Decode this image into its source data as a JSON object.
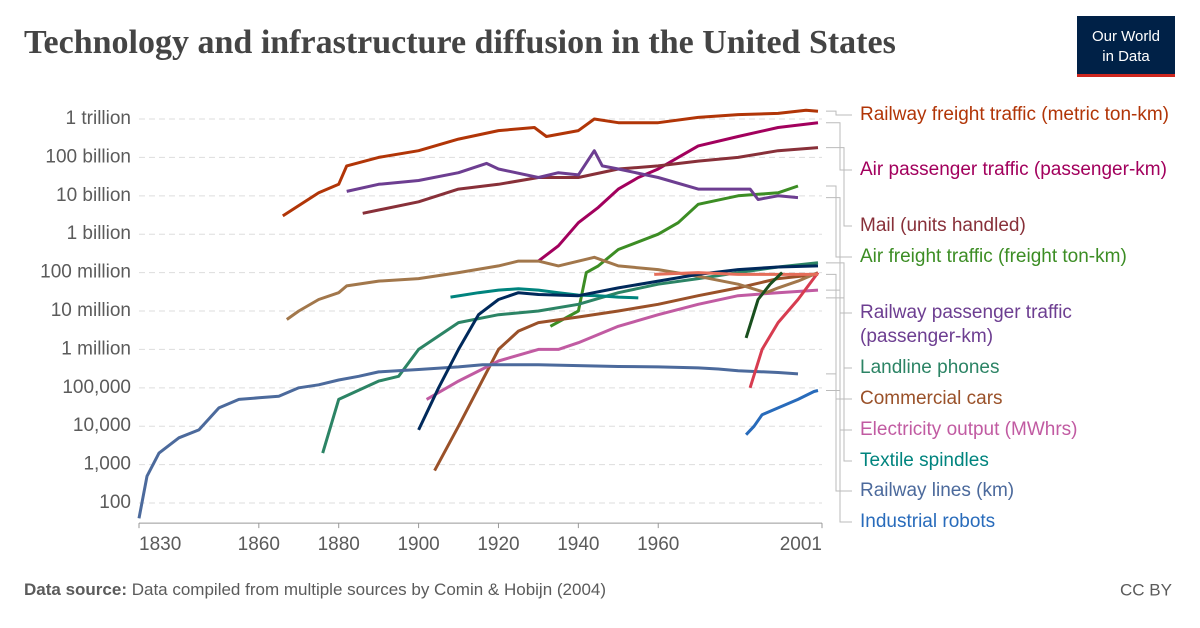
{
  "chart_data": {
    "type": "line",
    "title": "Technology and infrastructure diffusion in the United States",
    "logo": [
      "Our World",
      "in Data"
    ],
    "source_label": "Data source:",
    "source": "Data compiled from multiple sources by Comin & Hobijn (2004)",
    "license": "CC BY",
    "log_scale": true,
    "grid": true,
    "xlim": [
      1830,
      2001
    ],
    "xticks": [
      1830,
      1860,
      1880,
      1900,
      1920,
      1940,
      1960,
      2001
    ],
    "ylim": [
      30,
      3000000000000
    ],
    "yticks": [
      100,
      {
        "value": 1000,
        "label": "1,000"
      },
      {
        "value": 10000,
        "label": "10,000"
      },
      {
        "value": 100000,
        "label": "100,000"
      },
      {
        "value": 1000000,
        "label": "1 million"
      },
      {
        "value": 10000000,
        "label": "10 million"
      },
      {
        "value": 100000000,
        "label": "100 million"
      },
      {
        "value": 1000000000,
        "label": "1 billion"
      },
      {
        "value": 10000000000,
        "label": "10 billion"
      },
      {
        "value": 100000000000,
        "label": "100 billion"
      },
      {
        "value": 1000000000000,
        "label": "1 trillion"
      }
    ],
    "series": [
      {
        "name": "Railway freight traffic (metric ton-km)",
        "color": "#b13507",
        "x": [
          1866,
          1875,
          1880,
          1882,
          1890,
          1900,
          1910,
          1920,
          1929,
          1932,
          1940,
          1944,
          1950,
          1960,
          1970,
          1980,
          1990,
          1997,
          2000
        ],
        "values": [
          3000000000.0,
          12000000000.0,
          20000000000.0,
          60000000000.0,
          100000000000.0,
          150000000000.0,
          300000000000.0,
          500000000000.0,
          600000000000.0,
          350000000000.0,
          500000000000.0,
          1000000000000.0,
          800000000000.0,
          800000000000.0,
          1100000000000.0,
          1300000000000.0,
          1400000000000.0,
          1700000000000.0,
          1600000000000.0
        ]
      },
      {
        "name": "Air passenger traffic (passenger-km)",
        "color": "#a2005d",
        "x": [
          1930,
          1935,
          1940,
          1945,
          1950,
          1955,
          1960,
          1965,
          1970,
          1980,
          1990,
          2000
        ],
        "values": [
          200000000.0,
          500000000.0,
          2000000000.0,
          5000000000.0,
          15000000000.0,
          30000000000.0,
          50000000000.0,
          100000000000.0,
          200000000000.0,
          350000000000.0,
          600000000000.0,
          800000000000.0
        ]
      },
      {
        "name": "Mail (units handled)",
        "color": "#883039",
        "x": [
          1886,
          1900,
          1910,
          1920,
          1930,
          1940,
          1950,
          1960,
          1970,
          1980,
          1990,
          2000
        ],
        "values": [
          3500000000.0,
          7000000000.0,
          15000000000.0,
          20000000000.0,
          30000000000.0,
          30000000000.0,
          50000000000.0,
          60000000000.0,
          80000000000.0,
          100000000000.0,
          150000000000.0,
          180000000000.0
        ]
      },
      {
        "name": "Air freight traffic (freight ton-km)",
        "color": "#3c8d24",
        "x": [
          1933,
          1940,
          1942,
          1945,
          1950,
          1960,
          1965,
          1970,
          1980,
          1990,
          1995
        ],
        "values": [
          4000000.0,
          10000000.0,
          100000000.0,
          150000000.0,
          400000000.0,
          1000000000.0,
          2000000000.0,
          6000000000.0,
          10000000000.0,
          12000000000.0,
          18000000000.0
        ]
      },
      {
        "name": "Railway passenger traffic (passenger-km)",
        "color": "#6d3e91",
        "x": [
          1882,
          1890,
          1900,
          1910,
          1917,
          1920,
          1930,
          1935,
          1940,
          1944,
          1946,
          1950,
          1960,
          1970,
          1980,
          1983,
          1985,
          1990,
          1995
        ],
        "values": [
          13000000000.0,
          20000000000.0,
          25000000000.0,
          40000000000.0,
          70000000000.0,
          50000000000.0,
          30000000000.0,
          40000000000.0,
          35000000000.0,
          150000000000.0,
          60000000000.0,
          50000000000.0,
          30000000000.0,
          15000000000.0,
          15000000000.0,
          15000000000.0,
          8000000000.0,
          10000000000.0,
          9000000000.0
        ]
      },
      {
        "name": "Landline phones",
        "color": "#2c8465",
        "x": [
          1876,
          1880,
          1890,
          1895,
          1900,
          1910,
          1920,
          1930,
          1940,
          1950,
          1960,
          1970,
          1980,
          1990,
          2000
        ],
        "values": [
          2000.0,
          50000.0,
          150000.0,
          200000.0,
          1000000.0,
          5000000.0,
          8000000.0,
          10000000.0,
          15000000.0,
          30000000.0,
          50000000.0,
          70000000.0,
          100000000.0,
          140000000.0,
          180000000.0
        ]
      },
      {
        "name": "Commercial cars",
        "color": "#9a5129",
        "x": [
          1904,
          1910,
          1915,
          1920,
          1925,
          1930,
          1940,
          1950,
          1960,
          1970,
          1980,
          1990,
          2000
        ],
        "values": [
          700,
          10000.0,
          100000.0,
          1000000.0,
          3000000.0,
          5000000.0,
          7000000.0,
          10000000.0,
          15000000.0,
          25000000.0,
          40000000.0,
          70000000.0,
          90000000.0
        ]
      },
      {
        "name": "Electricity output (MWhrs)",
        "color": "#c15ba2",
        "x": [
          1902,
          1910,
          1920,
          1930,
          1935,
          1940,
          1950,
          1960,
          1970,
          1980,
          1990,
          2000
        ],
        "values": [
          50000.0,
          150000.0,
          500000.0,
          1000000.0,
          1000000.0,
          1500000.0,
          4000000.0,
          8000000.0,
          15000000.0,
          25000000.0,
          30000000.0,
          35000000.0
        ]
      },
      {
        "name": "Textile spindles",
        "color": "#00847e",
        "x": [
          1908,
          1915,
          1920,
          1925,
          1930,
          1935,
          1940,
          1945,
          1950,
          1955
        ],
        "values": [
          23000000.0,
          30000000.0,
          35000000.0,
          38000000.0,
          35000000.0,
          30000000.0,
          26000000.0,
          25000000.0,
          23000000.0,
          22000000.0
        ]
      },
      {
        "name": "Railway lines (km)",
        "color": "#4c6a9c",
        "x": [
          1830,
          1832,
          1835,
          1840,
          1845,
          1850,
          1855,
          1860,
          1865,
          1870,
          1875,
          1880,
          1885,
          1890,
          1900,
          1910,
          1916,
          1930,
          1940,
          1950,
          1960,
          1970,
          1975,
          1980,
          1990,
          1995
        ],
        "values": [
          40,
          500,
          2000,
          5000,
          8000,
          30000.0,
          50000.0,
          55000.0,
          60000.0,
          100000.0,
          120000.0,
          160000.0,
          200000.0,
          260000.0,
          300000.0,
          350000.0,
          400000.0,
          400000.0,
          380000.0,
          360000.0,
          350000.0,
          330000.0,
          310000.0,
          280000.0,
          250000.0,
          230000.0
        ]
      },
      {
        "name": "Industrial robots",
        "color": "#286bbb",
        "x": [
          1982,
          1984,
          1986,
          1990,
          1995,
          1999,
          2000
        ],
        "values": [
          6000.0,
          10000.0,
          20000.0,
          30000.0,
          50000.0,
          80000.0,
          85000.0
        ]
      },
      {
        "color": "#a2774b",
        "x": [
          1867,
          1870,
          1875,
          1880,
          1882,
          1890,
          1900,
          1910,
          1920,
          1925,
          1930,
          1935,
          1944,
          1950,
          1960,
          1970,
          1980,
          1987,
          1990,
          1995,
          2000
        ],
        "values": [
          6000000.0,
          10000000.0,
          20000000.0,
          30000000.0,
          45000000.0,
          60000000.0,
          70000000.0,
          100000000.0,
          150000000.0,
          200000000.0,
          200000000.0,
          150000000.0,
          250000000.0,
          150000000.0,
          120000000.0,
          80000000.0,
          50000000.0,
          30000000.0,
          40000000.0,
          60000000.0,
          100000000.0
        ]
      },
      {
        "color": "#00295b",
        "x": [
          1900,
          1905,
          1910,
          1915,
          1920,
          1925,
          1930,
          1940,
          1950,
          1960,
          1970,
          1980,
          1990,
          2000
        ],
        "values": [
          8000.0,
          100000.0,
          1000000.0,
          8000000.0,
          20000000.0,
          30000000.0,
          27000000.0,
          25000000.0,
          40000000.0,
          60000000.0,
          90000000.0,
          120000000.0,
          140000000.0,
          150000000.0
        ]
      },
      {
        "color": "#d73c50",
        "x": [
          1983,
          1986,
          1990,
          1995,
          2000
        ],
        "values": [
          100000.0,
          1000000.0,
          5000000.0,
          20000000.0,
          100000000.0
        ]
      },
      {
        "color": "#e56e5a",
        "x": [
          1959,
          1970,
          1980,
          2000
        ],
        "values": [
          90000000.0,
          100000000.0,
          90000000.0,
          90000000.0
        ]
      },
      {
        "color": "#194f1e",
        "x": [
          1982,
          1985,
          1988,
          1991
        ],
        "values": [
          2000000.0,
          20000000.0,
          50000000.0,
          100000000.0
        ]
      }
    ]
  }
}
